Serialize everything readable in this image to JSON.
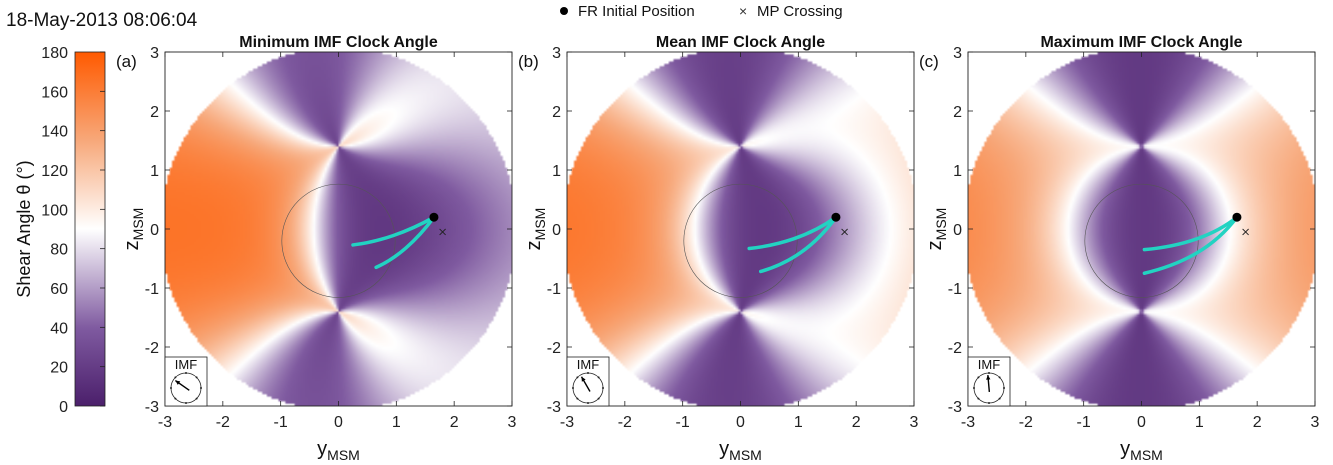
{
  "timestamp": "18-May-2013 08:06:04",
  "legend": {
    "placement": "top-center",
    "items": [
      {
        "label": "FR Initial Position",
        "marker": "filled-circle"
      },
      {
        "label": "MP Crossing",
        "marker": "x"
      }
    ]
  },
  "colorbar": {
    "label_main": "Shear Angle θ",
    "label_unit": "(°)",
    "range": [
      0,
      180
    ],
    "ticks": [
      "0",
      "20",
      "40",
      "60",
      "80",
      "100",
      "120",
      "140",
      "160",
      "180"
    ],
    "colors": {
      "low": "#4b1f6b",
      "mid": "#ffffff",
      "high": "#ff5a00"
    }
  },
  "chart_data": [
    {
      "type": "heatmap",
      "panel_label": "(a)",
      "title": "Minimum IMF Clock Angle",
      "xlabel": "y",
      "xlabel_sub": "MSM",
      "ylabel": "z",
      "ylabel_sub": "MSM",
      "xlim": [
        -3,
        3
      ],
      "ylim": [
        -3,
        3
      ],
      "xticks": [
        "-3",
        "-2",
        "-1",
        "0",
        "1",
        "2",
        "3"
      ],
      "yticks": [
        "-3",
        "-2",
        "-1",
        "0",
        "1",
        "2",
        "3"
      ],
      "imf_inset_label": "IMF",
      "imf_clock_angle_deg": -55,
      "fr_initial_position": [
        1.65,
        0.2
      ],
      "mp_crossing": [
        1.8,
        -0.05
      ],
      "trajectories": [
        [
          [
            1.65,
            0.2
          ],
          [
            1.2,
            -0.05
          ],
          [
            0.7,
            -0.22
          ],
          [
            0.25,
            -0.27
          ]
        ],
        [
          [
            1.65,
            0.2
          ],
          [
            1.35,
            -0.2
          ],
          [
            1.0,
            -0.5
          ],
          [
            0.65,
            -0.65
          ]
        ]
      ]
    },
    {
      "type": "heatmap",
      "panel_label": "(b)",
      "title": "Mean IMF Clock Angle",
      "xlabel": "y",
      "xlabel_sub": "MSM",
      "ylabel": "z",
      "ylabel_sub": "MSM",
      "xlim": [
        -3,
        3
      ],
      "ylim": [
        -3,
        3
      ],
      "xticks": [
        "-3",
        "-2",
        "-1",
        "0",
        "1",
        "2",
        "3"
      ],
      "yticks": [
        "-3",
        "-2",
        "-1",
        "0",
        "1",
        "2",
        "3"
      ],
      "imf_inset_label": "IMF",
      "imf_clock_angle_deg": -30,
      "fr_initial_position": [
        1.65,
        0.2
      ],
      "mp_crossing": [
        1.8,
        -0.05
      ],
      "trajectories": [
        [
          [
            1.65,
            0.2
          ],
          [
            1.2,
            -0.12
          ],
          [
            0.65,
            -0.28
          ],
          [
            0.15,
            -0.33
          ]
        ],
        [
          [
            1.65,
            0.2
          ],
          [
            1.3,
            -0.28
          ],
          [
            0.85,
            -0.58
          ],
          [
            0.35,
            -0.72
          ]
        ]
      ]
    },
    {
      "type": "heatmap",
      "panel_label": "(c)",
      "title": "Maximum IMF Clock Angle",
      "xlabel": "y",
      "xlabel_sub": "MSM",
      "ylabel": "z",
      "ylabel_sub": "MSM",
      "xlim": [
        -3,
        3
      ],
      "ylim": [
        -3,
        3
      ],
      "xticks": [
        "-3",
        "-2",
        "-1",
        "0",
        "1",
        "2",
        "3"
      ],
      "yticks": [
        "-3",
        "-2",
        "-1",
        "0",
        "1",
        "2",
        "3"
      ],
      "imf_inset_label": "IMF",
      "imf_clock_angle_deg": -5,
      "fr_initial_position": [
        1.65,
        0.2
      ],
      "mp_crossing": [
        1.8,
        -0.05
      ],
      "trajectories": [
        [
          [
            1.65,
            0.2
          ],
          [
            1.2,
            -0.15
          ],
          [
            0.6,
            -0.3
          ],
          [
            0.05,
            -0.35
          ]
        ],
        [
          [
            1.65,
            0.2
          ],
          [
            1.25,
            -0.32
          ],
          [
            0.7,
            -0.6
          ],
          [
            0.05,
            -0.75
          ]
        ]
      ]
    }
  ]
}
